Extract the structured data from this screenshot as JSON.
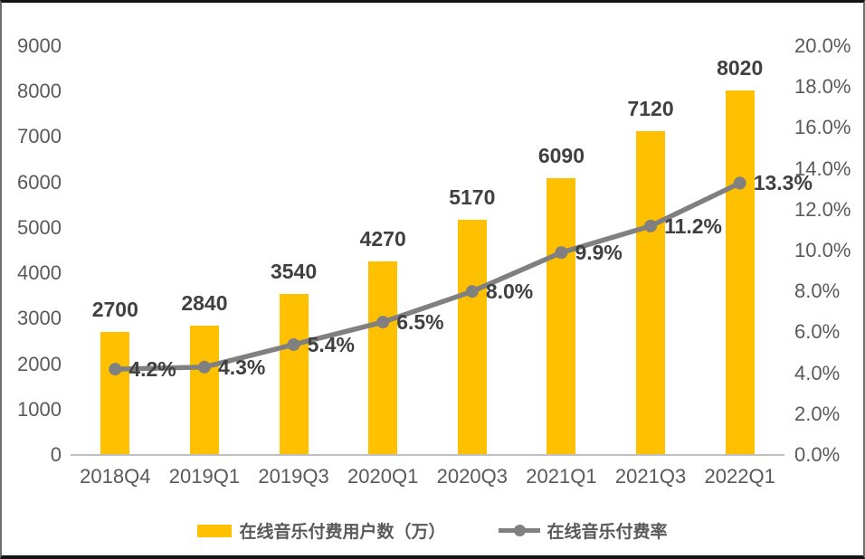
{
  "chart_data": {
    "type": "combo-bar-line",
    "title": "",
    "categories": [
      "2018Q4",
      "2019Q1",
      "2019Q3",
      "2020Q1",
      "2020Q3",
      "2021Q1",
      "2021Q3",
      "2022Q1"
    ],
    "series": [
      {
        "name": "在线音乐付费用户数（万）",
        "type": "bar",
        "axis": "left",
        "color": "#FFC000",
        "values": [
          2700,
          2840,
          3540,
          4270,
          5170,
          6090,
          7120,
          8020
        ],
        "labels": [
          "2700",
          "2840",
          "3540",
          "4270",
          "5170",
          "6090",
          "7120",
          "8020"
        ]
      },
      {
        "name": "在线音乐付费率",
        "type": "line",
        "axis": "right",
        "color": "#808080",
        "marker": "circle",
        "values": [
          4.2,
          4.3,
          5.4,
          6.5,
          8.0,
          9.9,
          11.2,
          13.3
        ],
        "labels": [
          "4.2%",
          "4.3%",
          "5.4%",
          "6.5%",
          "8.0%",
          "9.9%",
          "11.2%",
          "13.3%"
        ]
      }
    ],
    "left_axis": {
      "min": 0,
      "max": 9000,
      "step": 1000,
      "tick_labels": [
        "0",
        "1000",
        "2000",
        "3000",
        "4000",
        "5000",
        "6000",
        "7000",
        "8000",
        "9000"
      ]
    },
    "right_axis": {
      "min": 0,
      "max": 20,
      "step": 2,
      "tick_labels": [
        "0.0%",
        "2.0%",
        "4.0%",
        "6.0%",
        "8.0%",
        "10.0%",
        "12.0%",
        "14.0%",
        "16.0%",
        "18.0%",
        "20.0%"
      ]
    },
    "grid": false,
    "legend_position": "bottom",
    "colors": {
      "bar": "#FFC000",
      "line": "#808080",
      "data_label": "#404040",
      "axis_label": "#595959",
      "axis_line": "#C0C0C0",
      "background": "#FFFFFF"
    }
  }
}
